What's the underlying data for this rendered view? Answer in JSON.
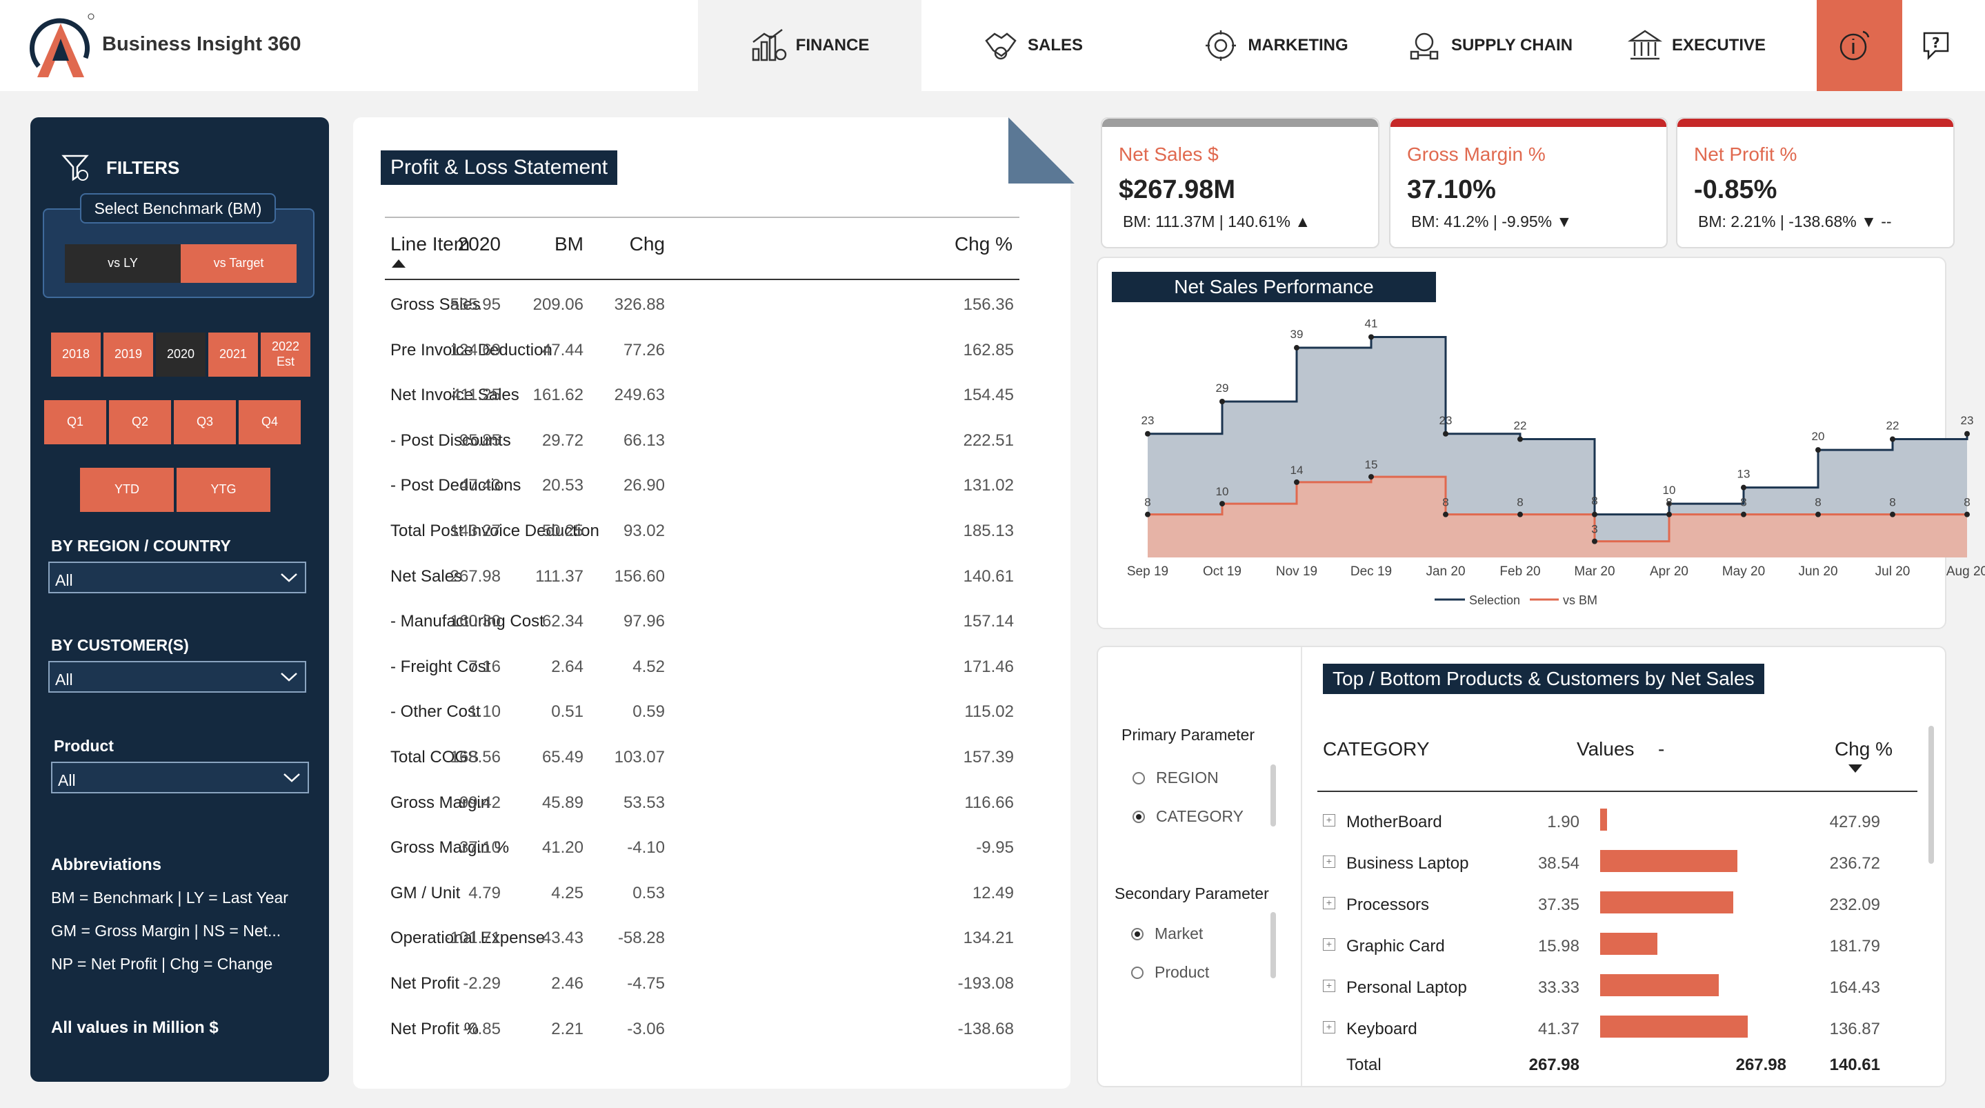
{
  "app": {
    "title": "Business Insight 360"
  },
  "nav": {
    "finance": "FINANCE",
    "sales": "SALES",
    "marketing": "MARKETING",
    "supply_chain": "SUPPLY CHAIN",
    "executive": "EXECUTIVE"
  },
  "colors": {
    "accent": "#e0694f",
    "navy": "#14293f",
    "selection": "#1c3550",
    "bm_line": "#e0694f"
  },
  "filters": {
    "title": "FILTERS",
    "benchmark_label": "Select Benchmark (BM)",
    "vs_ly": "vs LY",
    "vs_target": "vs Target",
    "years": [
      "2018",
      "2019",
      "2020",
      "2021",
      "2022 Est"
    ],
    "selected_year": "2020",
    "quarters": [
      "Q1",
      "Q2",
      "Q3",
      "Q4"
    ],
    "ytd": "YTD",
    "ytg": "YTG",
    "region_label": "BY REGION / COUNTRY",
    "region_value": "All",
    "customer_label": "BY CUSTOMER(S)",
    "customer_value": "All",
    "product_label": "Product",
    "product_value": "All",
    "abbreviations_title": "Abbreviations",
    "abbreviations": [
      "BM = Benchmark | LY = Last Year",
      "GM = Gross Margin | NS = Net...",
      "NP = Net Profit | Chg = Change"
    ],
    "all_values_note": "All values in Million $"
  },
  "pl": {
    "title": "Profit & Loss Statement",
    "columns": [
      "Line Item",
      "2020",
      "BM",
      "Chg",
      "Chg %"
    ],
    "rows": [
      {
        "item": "Gross Sales",
        "y2020": "535.95",
        "bm": "209.06",
        "chg": "326.88",
        "chg_pct": "156.36"
      },
      {
        "item": "Pre Invoice Deduction",
        "y2020": "124.69",
        "bm": "47.44",
        "chg": "77.26",
        "chg_pct": "162.85"
      },
      {
        "item": "Net Invoice Sales",
        "y2020": "411.25",
        "bm": "161.62",
        "chg": "249.63",
        "chg_pct": "154.45"
      },
      {
        "item": "- Post Discounts",
        "y2020": "95.85",
        "bm": "29.72",
        "chg": "66.13",
        "chg_pct": "222.51"
      },
      {
        "item": "- Post Deductions",
        "y2020": "47.43",
        "bm": "20.53",
        "chg": "26.90",
        "chg_pct": "131.02"
      },
      {
        "item": "Total Post Invoice Deduction",
        "y2020": "143.27",
        "bm": "50.25",
        "chg": "93.02",
        "chg_pct": "185.13"
      },
      {
        "item": "Net Sales",
        "y2020": "267.98",
        "bm": "111.37",
        "chg": "156.60",
        "chg_pct": "140.61"
      },
      {
        "item": "- Manufacturing Cost",
        "y2020": "160.30",
        "bm": "62.34",
        "chg": "97.96",
        "chg_pct": "157.14"
      },
      {
        "item": "- Freight Cost",
        "y2020": "7.16",
        "bm": "2.64",
        "chg": "4.52",
        "chg_pct": "171.46"
      },
      {
        "item": "- Other Cost",
        "y2020": "1.10",
        "bm": "0.51",
        "chg": "0.59",
        "chg_pct": "115.02"
      },
      {
        "item": "Total COGS",
        "y2020": "168.56",
        "bm": "65.49",
        "chg": "103.07",
        "chg_pct": "157.39"
      },
      {
        "item": "Gross Margin",
        "y2020": "99.42",
        "bm": "45.89",
        "chg": "53.53",
        "chg_pct": "116.66"
      },
      {
        "item": "Gross Margin %",
        "y2020": "37.10",
        "bm": "41.20",
        "chg": "-4.10",
        "chg_pct": "-9.95"
      },
      {
        "item": "GM / Unit",
        "y2020": "4.79",
        "bm": "4.25",
        "chg": "0.53",
        "chg_pct": "12.49"
      },
      {
        "item": "Operational Expense",
        "y2020": "-101.71",
        "bm": "-43.43",
        "chg": "-58.28",
        "chg_pct": "134.21"
      },
      {
        "item": "Net Profit",
        "y2020": "-2.29",
        "bm": "2.46",
        "chg": "-4.75",
        "chg_pct": "-193.08"
      },
      {
        "item": "Net Profit %",
        "y2020": "-0.85",
        "bm": "2.21",
        "chg": "-3.06",
        "chg_pct": "-138.68"
      }
    ]
  },
  "kpis": [
    {
      "title": "Net Sales $",
      "value": "$267.98M",
      "sub": "BM: 111.37M | 140.61% ▲",
      "bar_color": "#9e9e9e"
    },
    {
      "title": "Gross Margin %",
      "value": "37.10%",
      "sub": "BM: 41.2% | -9.95% ▼",
      "bar_color": "#c62828"
    },
    {
      "title": "Net Profit %",
      "value": "-0.85%",
      "sub": "BM: 2.21% | -138.68% ▼ --",
      "bar_color": "#c62828"
    }
  ],
  "chart_data": {
    "type": "area",
    "title": "Net Sales Performance",
    "categories": [
      "Sep 19",
      "Oct 19",
      "Nov 19",
      "Dec 19",
      "Jan 20",
      "Feb 20",
      "Mar 20",
      "Apr 20",
      "May 20",
      "Jun 20",
      "Jul 20",
      "Aug 20"
    ],
    "series": [
      {
        "name": "Selection",
        "values": [
          23,
          29,
          39,
          41,
          23,
          22,
          8,
          10,
          13,
          20,
          22,
          23
        ]
      },
      {
        "name": "vs BM",
        "values": [
          8,
          10,
          14,
          15,
          8,
          8,
          3,
          8,
          8,
          8,
          8,
          8
        ]
      }
    ],
    "ylim": [
      0,
      45
    ],
    "legend": "bottom-center"
  },
  "top_bottom": {
    "title": "Top / Bottom Products & Customers by Net Sales",
    "primary_label": "Primary Parameter",
    "primary_options": [
      "REGION",
      "CATEGORY"
    ],
    "secondary_label": "Secondary Parameter",
    "secondary_options": [
      "Market",
      "Product"
    ],
    "columns": [
      "CATEGORY",
      "Values",
      "-",
      "Chg %"
    ],
    "rows": [
      {
        "name": "MotherBoard",
        "value": 1.9,
        "value_text": "1.90",
        "chg": "427.99"
      },
      {
        "name": "Business Laptop",
        "value": 38.54,
        "value_text": "38.54",
        "chg": "236.72"
      },
      {
        "name": "Processors",
        "value": 37.35,
        "value_text": "37.35",
        "chg": "232.09"
      },
      {
        "name": "Graphic Card",
        "value": 15.98,
        "value_text": "15.98",
        "chg": "181.79"
      },
      {
        "name": "Personal Laptop",
        "value": 33.33,
        "value_text": "33.33",
        "chg": "164.43"
      },
      {
        "name": "Keyboard",
        "value": 41.37,
        "value_text": "41.37",
        "chg": "136.87"
      }
    ],
    "total_label": "Total",
    "total_value": "267.98",
    "total_value2": "267.98",
    "total_chg": "140.61"
  }
}
